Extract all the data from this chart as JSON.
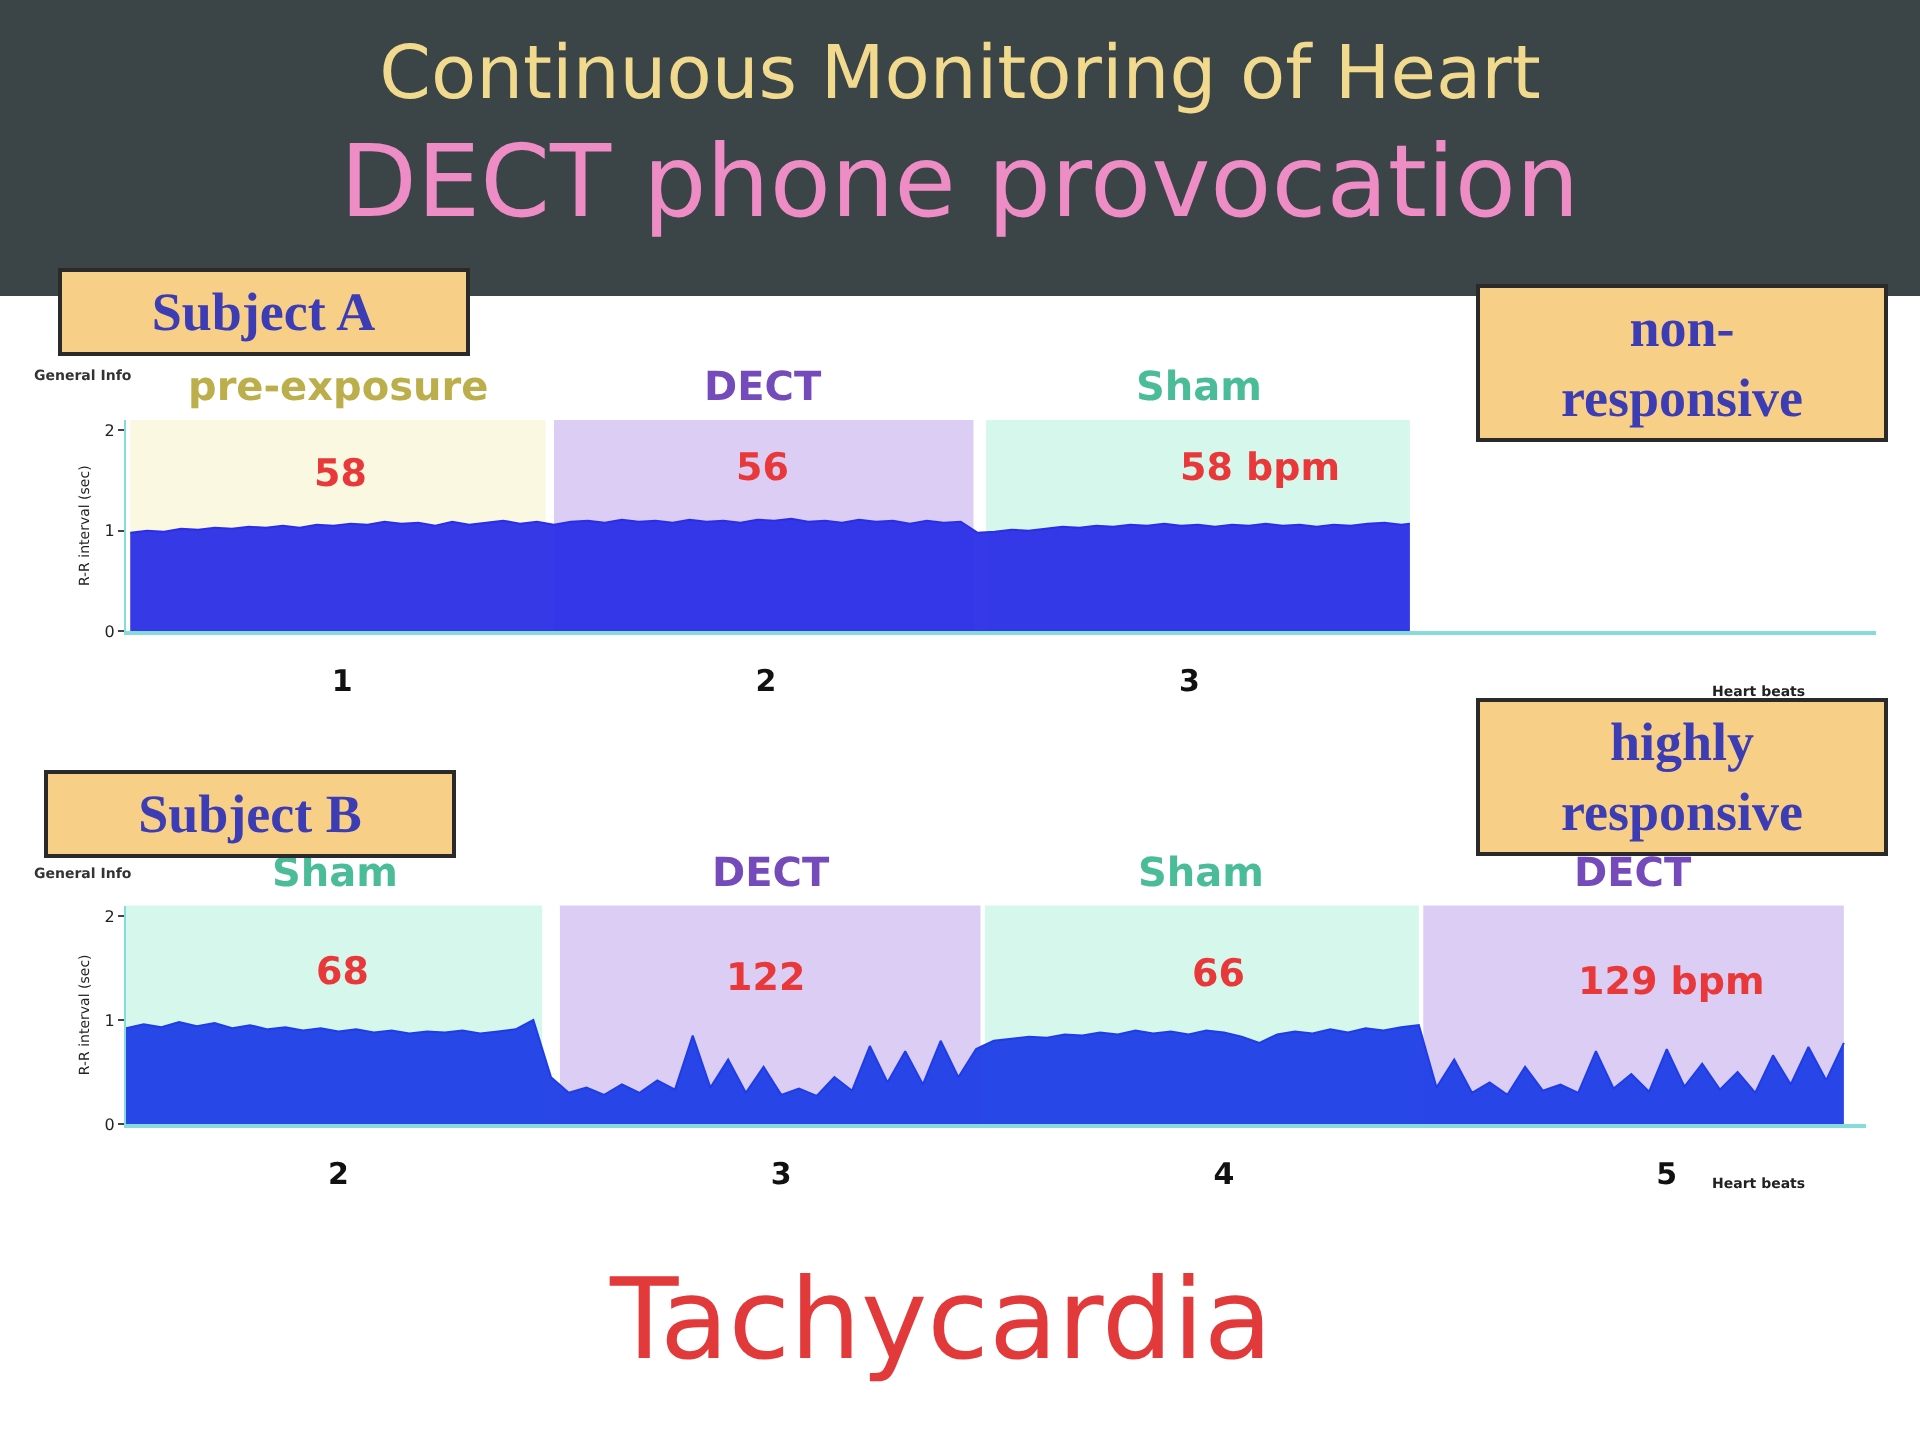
{
  "chart_data": [
    {
      "type": "area",
      "title": "Continuous Monitoring of Heart",
      "subtitle": "DECT phone provocation",
      "xlabel": "Heart beats",
      "ylabel": "R-R interval (sec)",
      "grid": false,
      "x": [
        0.5,
        0.54,
        0.58,
        0.62,
        0.66,
        0.7,
        0.74,
        0.78,
        0.82,
        0.86,
        0.9,
        0.94,
        0.98,
        1.02,
        1.06,
        1.1,
        1.14,
        1.18,
        1.22,
        1.26,
        1.3,
        1.34,
        1.38,
        1.42,
        1.46,
        1.5,
        1.54,
        1.58,
        1.62,
        1.66,
        1.7,
        1.74,
        1.78,
        1.82,
        1.86,
        1.9,
        1.94,
        1.98,
        2.02,
        2.06,
        2.1,
        2.14,
        2.18,
        2.22,
        2.26,
        2.3,
        2.34,
        2.38,
        2.42,
        2.46,
        2.5,
        2.54,
        2.58,
        2.62,
        2.66,
        2.7,
        2.74,
        2.78,
        2.82,
        2.86,
        2.9,
        2.94,
        2.98,
        3.02,
        3.06,
        3.1,
        3.14,
        3.18,
        3.22,
        3.26,
        3.3,
        3.34,
        3.38,
        3.42,
        3.46,
        3.5,
        3.52
      ],
      "series": [
        {
          "color": "#2a2ee6",
          "values": [
            0.98,
            1.0,
            0.99,
            1.02,
            1.01,
            1.03,
            1.02,
            1.04,
            1.03,
            1.05,
            1.03,
            1.06,
            1.05,
            1.07,
            1.06,
            1.09,
            1.07,
            1.08,
            1.05,
            1.09,
            1.06,
            1.08,
            1.1,
            1.07,
            1.09,
            1.06,
            1.09,
            1.1,
            1.08,
            1.11,
            1.09,
            1.1,
            1.08,
            1.11,
            1.09,
            1.1,
            1.08,
            1.11,
            1.1,
            1.12,
            1.09,
            1.1,
            1.08,
            1.11,
            1.09,
            1.1,
            1.07,
            1.1,
            1.08,
            1.09,
            0.98,
            0.99,
            1.01,
            1.0,
            1.02,
            1.04,
            1.03,
            1.05,
            1.04,
            1.06,
            1.05,
            1.07,
            1.05,
            1.06,
            1.04,
            1.06,
            1.05,
            1.07,
            1.05,
            1.06,
            1.04,
            1.06,
            1.05,
            1.07,
            1.08,
            1.06,
            1.07
          ]
        }
      ],
      "xlim": [
        0.49,
        4.62
      ],
      "ylim": [
        0,
        2.1
      ],
      "xticks": [
        1,
        2,
        3
      ],
      "yticks": [
        0,
        1,
        2
      ],
      "bands": [
        {
          "axis": "x",
          "from": 0.5,
          "to": 1.48,
          "label": "pre-exposure",
          "color": "#fbf8e2"
        },
        {
          "axis": "x",
          "from": 1.5,
          "to": 2.49,
          "label": "DECT",
          "color": "#dccdf5"
        },
        {
          "axis": "x",
          "from": 2.52,
          "to": 3.52,
          "label": "Sham",
          "color": "#d5f7ec"
        }
      ],
      "annotations": [
        "Subject A",
        "non-\nresponsive",
        "General Info",
        "58",
        "56",
        "58 bpm"
      ]
    },
    {
      "type": "area",
      "xlabel": "Heart beats",
      "ylabel": "R-R interval (sec)",
      "grid": false,
      "x": [
        1.52,
        1.56,
        1.6,
        1.64,
        1.68,
        1.72,
        1.76,
        1.8,
        1.84,
        1.88,
        1.92,
        1.96,
        2.0,
        2.04,
        2.08,
        2.12,
        2.16,
        2.2,
        2.24,
        2.28,
        2.32,
        2.36,
        2.4,
        2.44,
        2.48,
        2.52,
        2.56,
        2.6,
        2.64,
        2.68,
        2.72,
        2.76,
        2.8,
        2.84,
        2.88,
        2.92,
        2.96,
        3.0,
        3.04,
        3.08,
        3.12,
        3.16,
        3.2,
        3.24,
        3.28,
        3.32,
        3.36,
        3.4,
        3.44,
        3.48,
        3.52,
        3.56,
        3.6,
        3.64,
        3.68,
        3.72,
        3.76,
        3.8,
        3.84,
        3.88,
        3.92,
        3.96,
        4.0,
        4.04,
        4.08,
        4.12,
        4.16,
        4.2,
        4.24,
        4.28,
        4.32,
        4.36,
        4.4,
        4.44,
        4.48,
        4.52,
        4.56,
        4.6,
        4.64,
        4.68,
        4.72,
        4.76,
        4.8,
        4.84,
        4.88,
        4.92,
        4.96,
        5.0,
        5.04,
        5.08,
        5.12,
        5.16,
        5.2,
        5.24,
        5.28,
        5.32,
        5.36,
        5.4
      ],
      "series": [
        {
          "color": "#1e3de6",
          "values": [
            0.92,
            0.96,
            0.93,
            0.98,
            0.94,
            0.97,
            0.92,
            0.95,
            0.91,
            0.93,
            0.9,
            0.92,
            0.89,
            0.91,
            0.88,
            0.9,
            0.87,
            0.89,
            0.88,
            0.9,
            0.87,
            0.89,
            0.91,
            1.0,
            0.45,
            0.3,
            0.35,
            0.28,
            0.38,
            0.3,
            0.42,
            0.33,
            0.85,
            0.35,
            0.62,
            0.3,
            0.55,
            0.28,
            0.34,
            0.27,
            0.45,
            0.32,
            0.75,
            0.4,
            0.7,
            0.38,
            0.8,
            0.45,
            0.72,
            0.8,
            0.82,
            0.84,
            0.83,
            0.86,
            0.85,
            0.88,
            0.86,
            0.9,
            0.87,
            0.89,
            0.86,
            0.9,
            0.88,
            0.84,
            0.78,
            0.86,
            0.89,
            0.87,
            0.91,
            0.88,
            0.92,
            0.9,
            0.93,
            0.95,
            0.35,
            0.62,
            0.3,
            0.4,
            0.28,
            0.55,
            0.32,
            0.38,
            0.3,
            0.7,
            0.34,
            0.48,
            0.31,
            0.72,
            0.36,
            0.58,
            0.33,
            0.5,
            0.3,
            0.66,
            0.38,
            0.74,
            0.42,
            0.78
          ]
        }
      ],
      "xlim": [
        1.52,
        5.45
      ],
      "ylim": [
        0,
        2.1
      ],
      "xticks": [
        2,
        3,
        4,
        5
      ],
      "yticks": [
        0,
        1,
        2
      ],
      "bands": [
        {
          "axis": "x",
          "from": 1.52,
          "to": 2.46,
          "label": "Sham",
          "color": "#d5f7ec"
        },
        {
          "axis": "x",
          "from": 2.5,
          "to": 3.45,
          "label": "DECT",
          "color": "#dccdf5"
        },
        {
          "axis": "x",
          "from": 3.46,
          "to": 4.44,
          "label": "Sham",
          "color": "#d5f7ec"
        },
        {
          "axis": "x",
          "from": 4.45,
          "to": 5.4,
          "label": "DECT",
          "color": "#dccdf5"
        }
      ],
      "annotations": [
        "Subject B",
        "highly\nresponsive",
        "General Info",
        "Tachycardia",
        "68",
        "122",
        "66",
        "129 bpm"
      ]
    }
  ]
}
